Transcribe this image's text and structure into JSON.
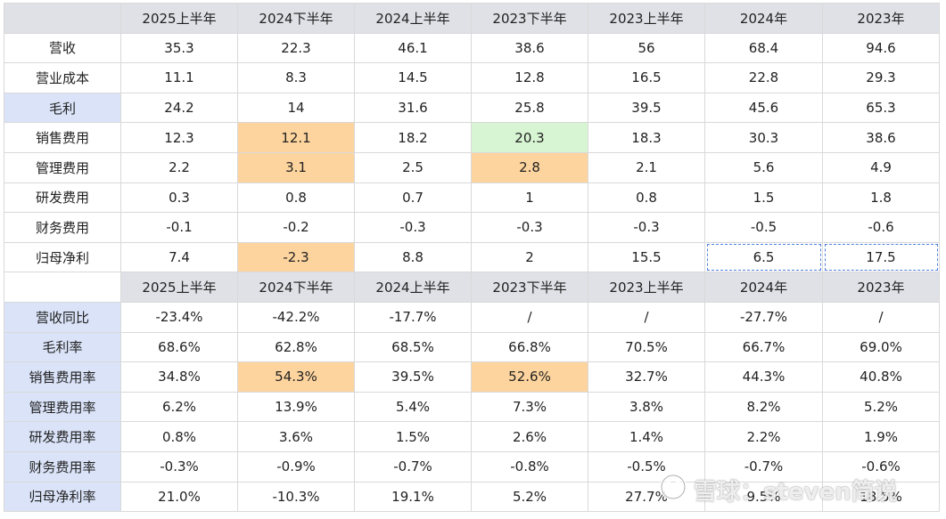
{
  "columns": [
    "2025上半年",
    "2024下半年",
    "2024上半年",
    "2023下半年",
    "2023上半年",
    "2024年",
    "2023年"
  ],
  "section1": {
    "rows": [
      {
        "label": "营收",
        "values": [
          "35.3",
          "22.3",
          "46.1",
          "38.6",
          "56",
          "68.4",
          "94.6"
        ]
      },
      {
        "label": "营业成本",
        "values": [
          "11.1",
          "8.3",
          "14.5",
          "12.8",
          "16.5",
          "22.8",
          "29.3"
        ]
      },
      {
        "label": "毛利",
        "values": [
          "24.2",
          "14",
          "31.6",
          "25.8",
          "39.5",
          "45.6",
          "65.3"
        ]
      },
      {
        "label": "销售费用",
        "values": [
          "12.3",
          "12.1",
          "18.2",
          "20.3",
          "18.3",
          "30.3",
          "38.6"
        ]
      },
      {
        "label": "管理费用",
        "values": [
          "2.2",
          "3.1",
          "2.5",
          "2.8",
          "2.1",
          "5.6",
          "4.9"
        ]
      },
      {
        "label": "研发费用",
        "values": [
          "0.3",
          "0.8",
          "0.7",
          "1",
          "0.8",
          "1.5",
          "1.8"
        ]
      },
      {
        "label": "财务费用",
        "values": [
          "-0.1",
          "-0.2",
          "-0.3",
          "-0.3",
          "-0.3",
          "-0.5",
          "-0.6"
        ]
      },
      {
        "label": "归母净利",
        "values": [
          "7.4",
          "-2.3",
          "8.8",
          "2",
          "15.5",
          "6.5",
          "17.5"
        ]
      }
    ]
  },
  "section2": {
    "rows": [
      {
        "label": "营收同比",
        "values": [
          "-23.4%",
          "-42.2%",
          "-17.7%",
          "/",
          "/",
          "-27.7%",
          "/"
        ]
      },
      {
        "label": "毛利率",
        "values": [
          "68.6%",
          "62.8%",
          "68.5%",
          "66.8%",
          "70.5%",
          "66.7%",
          "69.0%"
        ]
      },
      {
        "label": "销售费用率",
        "values": [
          "34.8%",
          "54.3%",
          "39.5%",
          "52.6%",
          "32.7%",
          "44.3%",
          "40.8%"
        ]
      },
      {
        "label": "管理费用率",
        "values": [
          "6.2%",
          "13.9%",
          "5.4%",
          "7.3%",
          "3.8%",
          "8.2%",
          "5.2%"
        ]
      },
      {
        "label": "研发费用率",
        "values": [
          "0.8%",
          "3.6%",
          "1.5%",
          "2.6%",
          "1.4%",
          "2.2%",
          "1.9%"
        ]
      },
      {
        "label": "财务费用率",
        "values": [
          "-0.3%",
          "-0.9%",
          "-0.7%",
          "-0.8%",
          "-0.5%",
          "-0.7%",
          "-0.6%"
        ]
      },
      {
        "label": "归母净利率",
        "values": [
          "21.0%",
          "-10.3%",
          "19.1%",
          "5.2%",
          "27.7%",
          "9.5%",
          "18.5%"
        ]
      }
    ]
  },
  "watermark": {
    "text": "雪球：steven简说",
    "icon": "snowball-logo-icon"
  },
  "colors": {
    "header": "#dfe1e6",
    "label_blue": "#dae3f8",
    "highlight_orange": "#fdd49e",
    "highlight_green": "#d8f5d3",
    "selection_dashed": "#4f7fe0"
  }
}
